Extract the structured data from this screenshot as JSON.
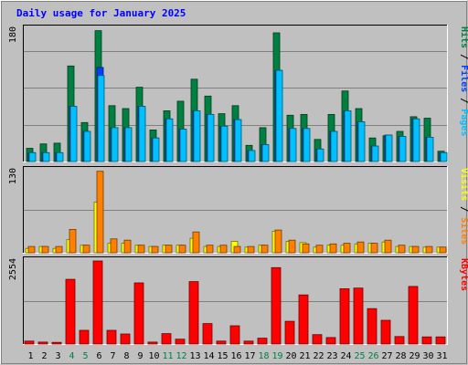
{
  "chart_data": {
    "type": "bar",
    "title": "Daily usage for January 2025",
    "categories": [
      "1",
      "2",
      "3",
      "4",
      "5",
      "6",
      "7",
      "8",
      "9",
      "10",
      "11",
      "12",
      "13",
      "14",
      "15",
      "16",
      "17",
      "18",
      "19",
      "20",
      "21",
      "22",
      "23",
      "24",
      "25",
      "26",
      "27",
      "28",
      "29",
      "30",
      "31"
    ],
    "weekend_days": [
      "4",
      "5",
      "11",
      "12",
      "18",
      "19",
      "25",
      "26"
    ],
    "panels": [
      {
        "name": "hits-files-pages",
        "y_max_label": "180",
        "ylim": [
          0,
          180
        ],
        "axis_legend": [
          {
            "text": "Pages",
            "color": "#00c0ff"
          },
          {
            "text": " / ",
            "color": "#000000"
          },
          {
            "text": "Files",
            "color": "#0040ff"
          },
          {
            "text": " / ",
            "color": "#000000"
          },
          {
            "text": "Hits",
            "color": "#008040"
          }
        ],
        "series": [
          {
            "name": "Hits",
            "color": "#008040",
            "values": [
              18,
              24,
              25,
              130,
              53,
              178,
              76,
              72,
              101,
              43,
              69,
              82,
              112,
              89,
              65,
              76,
              22,
              46,
              175,
              63,
              64,
              30,
              64,
              96,
              72,
              32,
              35,
              41,
              61,
              59,
              14
            ]
          },
          {
            "name": "Files",
            "color": "#0040ff",
            "values": [
              12,
              12,
              12,
              75,
              41,
              128,
              46,
              46,
              75,
              32,
              58,
              44,
              69,
              64,
              48,
              57,
              15,
              23,
              124,
              45,
              45,
              17,
              41,
              69,
              54,
              21,
              36,
              34,
              58,
              33,
              12
            ]
          },
          {
            "name": "Pages",
            "color": "#00c0ff",
            "values": [
              12,
              12,
              12,
              75,
              41,
              117,
              46,
              46,
              75,
              32,
              58,
              44,
              69,
              64,
              48,
              57,
              15,
              23,
              124,
              45,
              45,
              17,
              41,
              69,
              54,
              21,
              36,
              34,
              58,
              33,
              12
            ]
          }
        ]
      },
      {
        "name": "visits-sites",
        "y_max_label": "130",
        "ylim": [
          0,
          130
        ],
        "axis_legend": [
          {
            "text": "Sites",
            "color": "#ff8000"
          },
          {
            "text": " / ",
            "color": "#000000"
          },
          {
            "text": "Visits",
            "color": "#ffff00"
          }
        ],
        "series": [
          {
            "name": "Visits",
            "color": "#ffff00",
            "values": [
              7,
              10,
              7,
              21,
              12,
              80,
              15,
              15,
              12,
              10,
              12,
              12,
              23,
              10,
              10,
              18,
              9,
              12,
              34,
              18,
              16,
              9,
              12,
              12,
              14,
              15,
              17,
              10,
              10,
              9,
              9
            ]
          },
          {
            "name": "Sites",
            "color": "#ff8000",
            "values": [
              10,
              10,
              10,
              37,
              12,
              129,
              22,
              20,
              12,
              10,
              12,
              12,
              33,
              12,
              12,
              10,
              10,
              12,
              36,
              20,
              14,
              12,
              14,
              15,
              17,
              15,
              20,
              12,
              10,
              10,
              9
            ]
          }
        ]
      },
      {
        "name": "kbytes",
        "y_max_label": "2554",
        "ylim": [
          0,
          2554
        ],
        "axis_legend": [
          {
            "text": "KBytes",
            "color": "#ff0000"
          }
        ],
        "series": [
          {
            "name": "KBytes",
            "color": "#ff0000",
            "values": [
              90,
              60,
              50,
              1990,
              420,
              2554,
              420,
              310,
              1880,
              60,
              320,
              150,
              1920,
              630,
              90,
              560,
              90,
              180,
              2350,
              700,
              1510,
              290,
              200,
              1700,
              1720,
              1090,
              730,
              230,
              1770,
              220,
              220
            ]
          }
        ]
      }
    ]
  }
}
